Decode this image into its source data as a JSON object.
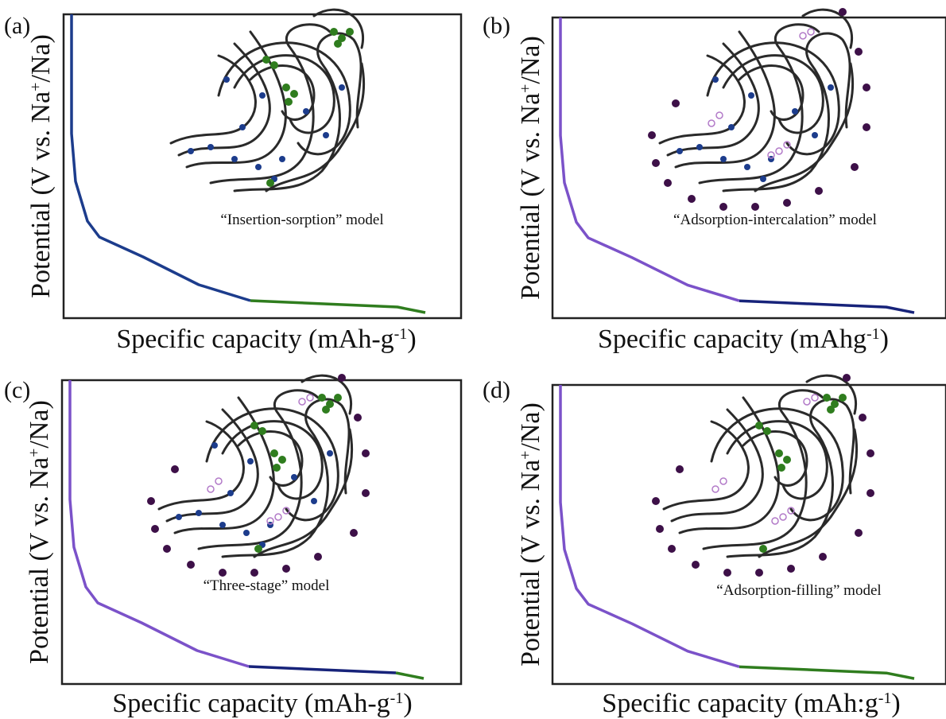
{
  "panels": [
    {
      "label": "(a)",
      "y_axis": [
        "Potential (V vs. Na",
        "+",
        "/Na)"
      ],
      "x_axis": [
        "Specific capacity (mAh-g",
        "-1",
        ")"
      ],
      "caption": "“Insertion-sorption” model"
    },
    {
      "label": "(b)",
      "y_axis": [
        "Potential (V vs. Na",
        "+",
        "/Na)"
      ],
      "x_axis": [
        "Specific capacity (mAhg",
        "-1",
        ")"
      ],
      "caption": "“Adsorption-intercalation” model"
    },
    {
      "label": "(c)",
      "y_axis": [
        "Potential (V vs. Na",
        "+",
        "/Na)"
      ],
      "x_axis": [
        "Specific capacity (mAh-g",
        "-1",
        ")"
      ],
      "caption": "“Three-stage” model"
    },
    {
      "label": "(d)",
      "y_axis": [
        "Potential (V vs. Na",
        "+",
        "/Na)"
      ],
      "x_axis": [
        "Specific capacity (mAh:g",
        "-1",
        ")"
      ],
      "caption": "“Adsorption-filling” model"
    }
  ]
}
